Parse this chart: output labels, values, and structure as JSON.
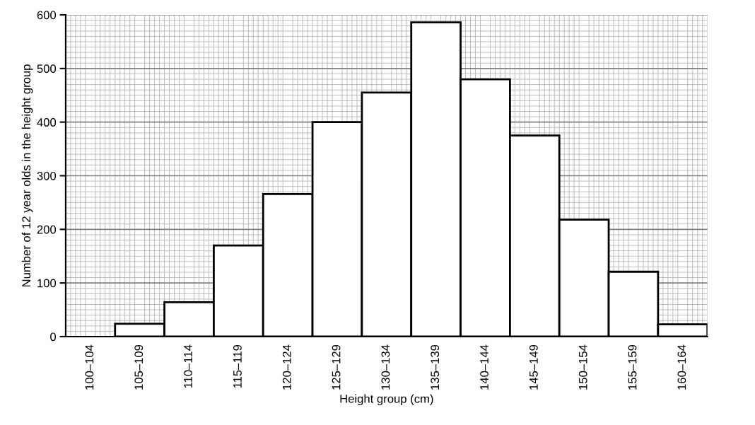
{
  "chart_data": {
    "type": "bar",
    "xlabel": "Height group (cm)",
    "ylabel": "Number of 12 year olds in the height group",
    "categories": [
      "100–104",
      "105–109",
      "110–114",
      "115–119",
      "120–124",
      "125–129",
      "130–134",
      "135–139",
      "140–144",
      "145–149",
      "150–154",
      "155–159",
      "160–164"
    ],
    "values": [
      0,
      24,
      64,
      170,
      266,
      400,
      455,
      586,
      480,
      375,
      218,
      121,
      23
    ],
    "color": "#ffffff",
    "ylim": [
      0,
      600
    ],
    "yticks": [
      0,
      100,
      200,
      300,
      400,
      500,
      600
    ],
    "grid": true
  }
}
